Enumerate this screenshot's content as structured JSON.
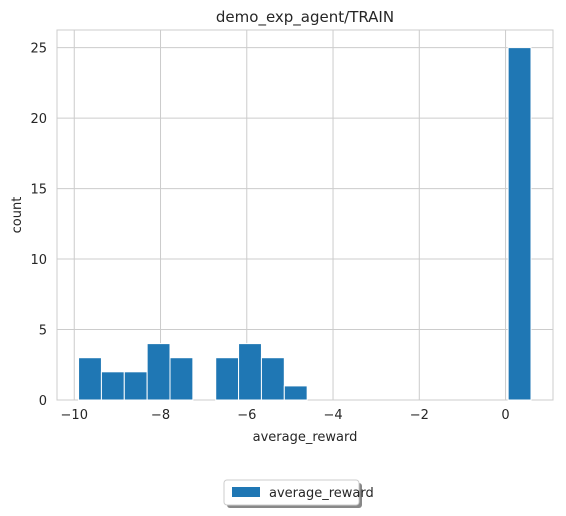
{
  "chart_data": {
    "type": "bar",
    "title": "demo_exp_agent/TRAIN",
    "xlabel": "average_reward",
    "ylabel": "count",
    "xlim": [
      -10.4,
      1.1
    ],
    "ylim": [
      0,
      26.25
    ],
    "xticks": [
      -10,
      -8,
      -6,
      -4,
      -2,
      0
    ],
    "xtick_labels": [
      "−10",
      "−8",
      "−6",
      "−4",
      "−2",
      "0"
    ],
    "yticks": [
      0,
      5,
      10,
      15,
      20,
      25
    ],
    "ytick_labels": [
      "0",
      "5",
      "10",
      "15",
      "20",
      "25"
    ],
    "grid": true,
    "legend_position": "bottom-center",
    "series": [
      {
        "name": "average_reward",
        "color": "#1f77b4",
        "bins": [
          {
            "x0": -9.9,
            "x1": -9.37,
            "count": 3
          },
          {
            "x0": -9.37,
            "x1": -8.84,
            "count": 2
          },
          {
            "x0": -8.84,
            "x1": -8.31,
            "count": 2
          },
          {
            "x0": -8.31,
            "x1": -7.78,
            "count": 4
          },
          {
            "x0": -7.78,
            "x1": -7.25,
            "count": 3
          },
          {
            "x0": -6.72,
            "x1": -6.19,
            "count": 3
          },
          {
            "x0": -6.19,
            "x1": -5.66,
            "count": 4
          },
          {
            "x0": -5.66,
            "x1": -5.13,
            "count": 3
          },
          {
            "x0": -5.13,
            "x1": -4.6,
            "count": 1
          },
          {
            "x0": 0.06,
            "x1": 0.59,
            "count": 25
          }
        ]
      }
    ]
  }
}
